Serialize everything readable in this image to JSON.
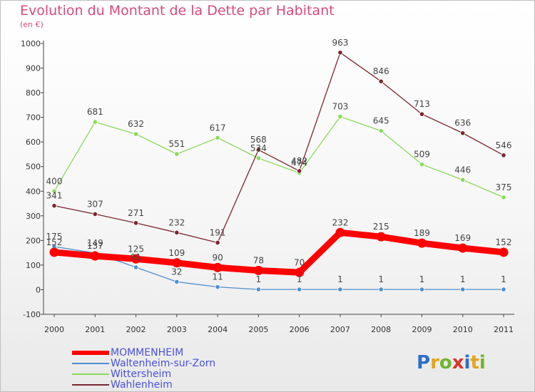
{
  "title": "Evolution du Montant de la Dette par Habitant",
  "subtitle": "(en €)",
  "colors": {
    "title": "#d8497d",
    "legend_text": "#4a52d8",
    "axis": "#444444",
    "series": [
      "#ff0000",
      "#4f8fcf",
      "#8ad95a",
      "#7a2630"
    ]
  },
  "chart_data": {
    "type": "line",
    "x": [
      "2000",
      "2001",
      "2002",
      "2003",
      "2004",
      "2005",
      "2006",
      "2007",
      "2008",
      "2009",
      "2010",
      "2011"
    ],
    "ylim": [
      -100,
      1000
    ],
    "yticks": [
      "-100",
      "0",
      "100",
      "200",
      "300",
      "400",
      "500",
      "600",
      "700",
      "800",
      "900",
      "1000"
    ],
    "grid": false,
    "legend_position": "bottom-left",
    "series": [
      {
        "name": "MOMMENHEIM",
        "values": [
          152,
          137,
          125,
          109,
          90,
          78,
          70,
          232,
          215,
          189,
          169,
          152
        ],
        "labels": [
          "152",
          "137",
          "125",
          "109",
          "90",
          "78",
          "70",
          "232",
          "215",
          "189",
          "169",
          "152"
        ]
      },
      {
        "name": "Waltenheim-sur-Zorn",
        "values": [
          175,
          149,
          91,
          32,
          11,
          1,
          1,
          1,
          1,
          1,
          1,
          1
        ],
        "labels": [
          "175",
          "149",
          "91",
          "32",
          "11",
          "1",
          "1",
          "1",
          "1",
          "1",
          "1",
          "1"
        ]
      },
      {
        "name": "Wittersheim",
        "values": [
          400,
          681,
          632,
          551,
          617,
          534,
          474,
          703,
          645,
          509,
          446,
          375
        ],
        "labels": [
          "400",
          "681",
          "632",
          "551",
          "617",
          "534",
          "474",
          "703",
          "645",
          "509",
          "446",
          "375"
        ]
      },
      {
        "name": "Wahlenheim",
        "values": [
          341,
          307,
          271,
          232,
          191,
          568,
          482,
          963,
          846,
          713,
          636,
          546
        ],
        "labels": [
          "341",
          "307",
          "271",
          "232",
          "191",
          "568",
          "482",
          "963",
          "846",
          "713",
          "636",
          "546"
        ]
      }
    ]
  },
  "logo": {
    "text": "Proxiti",
    "letters": [
      "P",
      "r",
      "o",
      "x",
      "i",
      "t",
      "i"
    ]
  }
}
